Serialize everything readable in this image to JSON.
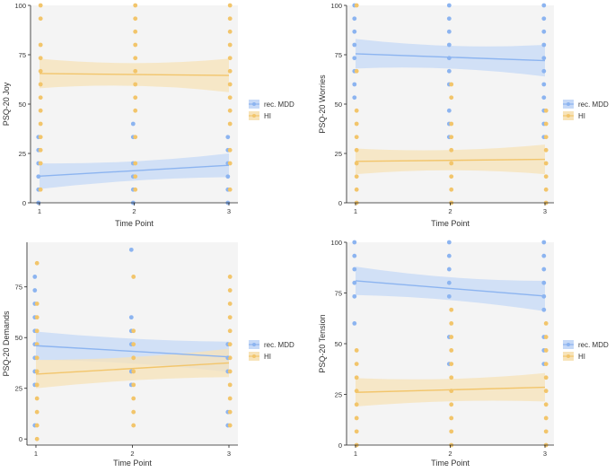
{
  "colors": {
    "mdd": "#8cb4f0",
    "hi": "#f2c56b",
    "mdd_band": "#c6d9f7",
    "hi_band": "#f7e3b8",
    "panel_bg": "#f4f4f4",
    "axis": "#222222",
    "text": "#333333"
  },
  "legend": [
    "rec. MDD",
    "HI"
  ],
  "chart_data": [
    {
      "type": "scatter",
      "title": "",
      "xlabel": "Time Point",
      "ylabel": "PSQ-20 Joy",
      "xticks": [
        1,
        2,
        3
      ],
      "yticks": [
        0,
        25,
        50,
        75,
        100
      ],
      "ylim": [
        0,
        100
      ],
      "legend_position": "right",
      "series": [
        {
          "name": "rec. MDD",
          "points": {
            "1": [
              0,
              6.7,
              13.3,
              20,
              26.7,
              33.3
            ],
            "2": [
              0,
              6.7,
              13.3,
              20,
              33.3,
              40
            ],
            "3": [
              0,
              6.7,
              13.3,
              20,
              26.7,
              33.3
            ]
          },
          "fit": {
            "start": 13.5,
            "end": 19.0
          },
          "ci": {
            "start": [
              7,
              20
            ],
            "mid": [
              12.5,
              19.5
            ],
            "end": [
              13,
              25
            ]
          }
        },
        {
          "name": "HI",
          "points": {
            "1": [
              6.7,
              20,
              26.7,
              33.3,
              40,
              46.7,
              53.3,
              60,
              66.7,
              73.3,
              80,
              93.3,
              100
            ],
            "2": [
              6.7,
              13.3,
              20,
              33.3,
              46.7,
              53.3,
              60,
              66.7,
              73.3,
              80,
              86.7,
              93.3,
              100
            ],
            "3": [
              6.7,
              20,
              26.7,
              40,
              46.7,
              53.3,
              60,
              66.7,
              73.3,
              80,
              86.7,
              93.3,
              100
            ]
          },
          "fit": {
            "start": 65.5,
            "end": 64.5
          },
          "ci": {
            "start": [
              58,
              73
            ],
            "mid": [
              61.5,
              68.5
            ],
            "end": [
              56,
              73
            ]
          }
        }
      ]
    },
    {
      "type": "scatter",
      "title": "",
      "xlabel": "Time Point",
      "ylabel": "PSQ-20 Worries",
      "xticks": [
        1,
        2,
        3
      ],
      "yticks": [
        0,
        25,
        50,
        75,
        100
      ],
      "ylim": [
        0,
        100
      ],
      "legend_position": "right",
      "series": [
        {
          "name": "rec. MDD",
          "points": {
            "1": [
              53.3,
              60,
              66.7,
              73.3,
              80,
              86.7,
              93.3,
              100
            ],
            "2": [
              33.3,
              40,
              46.7,
              60,
              66.7,
              73.3,
              80,
              86.7,
              93.3,
              100
            ],
            "3": [
              33.3,
              40,
              46.7,
              53.3,
              60,
              66.7,
              73.3,
              80,
              86.7,
              93.3,
              100
            ]
          },
          "fit": {
            "start": 75.5,
            "end": 72.0
          },
          "ci": {
            "start": [
              68,
              83
            ],
            "mid": [
              70,
              77.5
            ],
            "end": [
              64,
              80
            ]
          }
        },
        {
          "name": "HI",
          "points": {
            "1": [
              0,
              6.7,
              13.3,
              20,
              26.7,
              33.3,
              40,
              46.7,
              66.7,
              100
            ],
            "2": [
              0,
              6.7,
              13.3,
              20,
              26.7,
              33.3,
              40,
              53.3,
              60
            ],
            "3": [
              0,
              6.7,
              13.3,
              20,
              26.7,
              33.3,
              40,
              46.7
            ]
          },
          "fit": {
            "start": 21.0,
            "end": 22.0
          },
          "ci": {
            "start": [
              14.5,
              27.5
            ],
            "mid": [
              18.5,
              25
            ],
            "end": [
              14.5,
              29.5
            ]
          }
        }
      ]
    },
    {
      "type": "scatter",
      "title": "",
      "xlabel": "Time Point",
      "ylabel": "PSQ-20 Demands",
      "xticks": [
        1,
        2,
        3
      ],
      "yticks": [
        0,
        25,
        50,
        75
      ],
      "ylim": [
        -3,
        97
      ],
      "legend_position": "right",
      "series": [
        {
          "name": "rec. MDD",
          "points": {
            "1": [
              6.7,
              26.7,
              33.3,
              40,
              46.7,
              53.3,
              60,
              66.7,
              73.3,
              80
            ],
            "2": [
              26.7,
              33.3,
              46.7,
              53.3,
              60,
              93.3
            ],
            "3": [
              6.7,
              13.3,
              33.3,
              40,
              46.7
            ]
          },
          "fit": {
            "start": 46.0,
            "end": 40.5
          },
          "ci": {
            "start": [
              39,
              53
            ],
            "mid": [
              38.5,
              48.5
            ],
            "end": [
              33,
              48
            ]
          }
        },
        {
          "name": "HI",
          "points": {
            "1": [
              0,
              6.7,
              13.3,
              20,
              26.7,
              33.3,
              40,
              46.7,
              53.3,
              60,
              66.7,
              86.7
            ],
            "2": [
              6.7,
              13.3,
              20,
              26.7,
              33.3,
              40,
              46.7,
              53.3,
              80
            ],
            "3": [
              6.7,
              13.3,
              20,
              26.7,
              33.3,
              40,
              46.7,
              53.3,
              60,
              66.7,
              73.3,
              80
            ]
          },
          "fit": {
            "start": 32.0,
            "end": 37.5
          },
          "ci": {
            "start": [
              25,
              39
            ],
            "mid": [
              30,
              39
            ],
            "end": [
              30.5,
              44.5
            ]
          }
        }
      ]
    },
    {
      "type": "scatter",
      "title": "",
      "xlabel": "Time Point",
      "ylabel": "PSQ-20 Tension",
      "xticks": [
        1,
        2,
        3
      ],
      "yticks": [
        0,
        25,
        50,
        75,
        100
      ],
      "ylim": [
        0,
        100
      ],
      "legend_position": "right",
      "series": [
        {
          "name": "rec. MDD",
          "points": {
            "1": [
              60,
              73.3,
              80,
              86.7,
              93.3,
              100
            ],
            "2": [
              40,
              53.3,
              73.3,
              80,
              86.7,
              93.3,
              100
            ],
            "3": [
              40,
              46.7,
              53.3,
              66.7,
              73.3,
              80,
              86.7,
              93.3,
              100
            ]
          },
          "fit": {
            "start": 81.0,
            "end": 73.5
          },
          "ci": {
            "start": [
              74,
              88
            ],
            "mid": [
              73,
              81
            ],
            "end": [
              66,
              81
            ]
          }
        },
        {
          "name": "HI",
          "points": {
            "1": [
              0,
              6.7,
              13.3,
              20,
              26.7,
              33.3,
              40,
              46.7
            ],
            "2": [
              0,
              6.7,
              13.3,
              20,
              26.7,
              33.3,
              40,
              46.7,
              53.3,
              60,
              66.7
            ],
            "3": [
              0,
              6.7,
              13.3,
              20,
              26.7,
              33.3,
              40,
              46.7,
              53.3,
              60
            ]
          },
          "fit": {
            "start": 26.0,
            "end": 28.5
          },
          "ci": {
            "start": [
              19,
              33
            ],
            "mid": [
              23,
              31
            ],
            "end": [
              21.5,
              35.5
            ]
          }
        }
      ]
    }
  ]
}
